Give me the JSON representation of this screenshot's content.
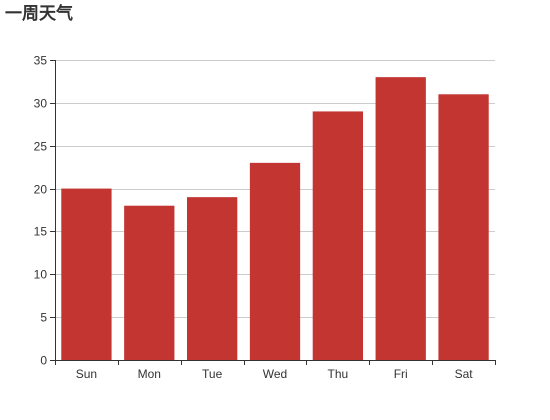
{
  "chart_data": {
    "type": "bar",
    "title": "一周天气",
    "categories": [
      "Sun",
      "Mon",
      "Tue",
      "Wed",
      "Thu",
      "Fri",
      "Sat"
    ],
    "values": [
      20,
      18,
      19,
      23,
      29,
      33,
      31
    ],
    "ylim": [
      0,
      35
    ],
    "yticks": [
      0,
      5,
      10,
      15,
      20,
      25,
      30,
      35
    ],
    "xlabel": "",
    "ylabel": "",
    "grid": "horizontal",
    "legend": "none",
    "bar_color": "#c23531",
    "grid_color": "#cccccc",
    "axis_color": "#333333"
  }
}
